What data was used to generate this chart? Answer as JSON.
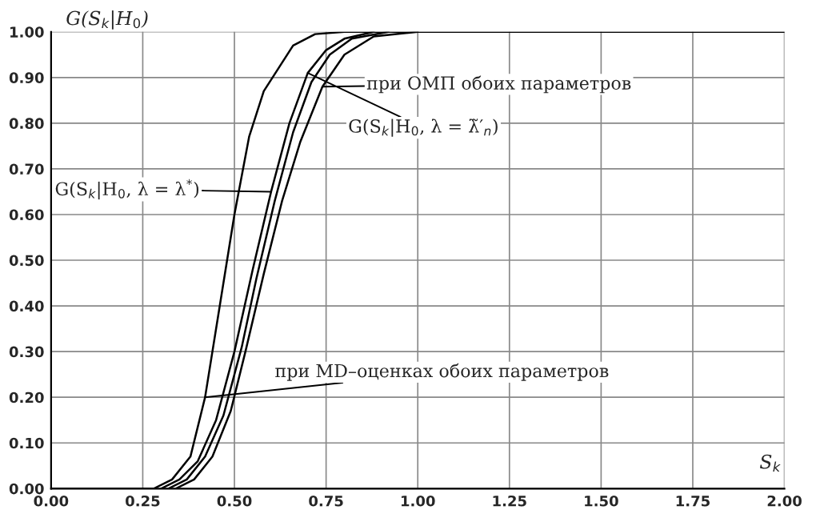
{
  "chart_data": {
    "type": "line",
    "ylabel": "G(S$_{k}$|H$_{0}$)",
    "xlabel": "S$_{k}$",
    "series": [
      {
        "color": "#000000",
        "x": [
          0,
          0.28,
          0.33,
          0.38,
          0.42,
          0.46,
          0.5,
          0.54,
          0.58,
          0.62,
          0.66,
          0.72,
          0.8,
          2.0
        ],
        "values": [
          0,
          0,
          0.02,
          0.07,
          0.2,
          0.4,
          0.6,
          0.77,
          0.87,
          0.92,
          0.97,
          0.995,
          1.0,
          1.0
        ]
      },
      {
        "color": "#000000",
        "x": [
          0.3,
          0.35,
          0.4,
          0.45,
          0.5,
          0.55,
          0.6,
          0.65,
          0.7,
          0.75,
          0.8,
          0.88
        ],
        "values": [
          0,
          0.02,
          0.06,
          0.15,
          0.3,
          0.48,
          0.65,
          0.8,
          0.91,
          0.96,
          0.985,
          1.0
        ]
      },
      {
        "color": "#000000",
        "x": [
          0.32,
          0.37,
          0.42,
          0.47,
          0.52,
          0.56,
          0.61,
          0.66,
          0.71,
          0.76,
          0.82,
          0.92
        ],
        "values": [
          0,
          0.02,
          0.07,
          0.16,
          0.31,
          0.46,
          0.63,
          0.78,
          0.89,
          0.95,
          0.985,
          1.0
        ]
      },
      {
        "color": "#000000",
        "x": [
          0.34,
          0.39,
          0.44,
          0.49,
          0.53,
          0.58,
          0.63,
          0.68,
          0.74,
          0.8,
          0.88,
          1.0
        ],
        "values": [
          0,
          0.02,
          0.07,
          0.17,
          0.3,
          0.47,
          0.63,
          0.76,
          0.88,
          0.95,
          0.99,
          1.0
        ]
      }
    ],
    "annotations": [
      {
        "text": "при ОМП обоих параметров",
        "x": 0.74,
        "y": 0.88
      },
      "G(S$_{k}$|H$_{0}$, λ = λ̃′$_{n}$)",
      "G(S$_{k}$|H$_{0}$, λ = λ$^{*}$)",
      {
        "text": "при MD–оценках обоих параметров",
        "x": 0.42,
        "y": 0.2
      }
    ],
    "xlim": [
      0,
      2.0
    ],
    "ylim": [
      0,
      1.0
    ],
    "xticks": [
      {
        "value": 0,
        "label": "0.00"
      },
      {
        "value": 0.25,
        "label": "0.25"
      },
      {
        "value": 0.5,
        "label": "0.50"
      },
      {
        "value": 0.75,
        "label": "0.75"
      },
      {
        "value": 1.0,
        "label": "1.00"
      },
      {
        "value": 1.25,
        "label": "1.25"
      },
      {
        "value": 1.5,
        "label": "1.50"
      },
      {
        "value": 1.75,
        "label": "1.75"
      },
      {
        "value": 2.0,
        "label": "2.00"
      }
    ],
    "yticks": [
      {
        "value": 0,
        "label": "0.00"
      },
      {
        "value": 0.1,
        "label": "0.10"
      },
      {
        "value": 0.2,
        "label": "0.20"
      },
      {
        "value": 0.3,
        "label": "0.30"
      },
      {
        "value": 0.4,
        "label": "0.40"
      },
      {
        "value": 0.5,
        "label": "0.50"
      },
      {
        "value": 0.6,
        "label": "0.60"
      },
      {
        "value": 0.7,
        "label": "0.70"
      },
      {
        "value": 0.8,
        "label": "0.80"
      },
      {
        "value": 0.9,
        "label": "0.90"
      },
      {
        "value": 1.0,
        "label": "1.00"
      }
    ],
    "grid": true,
    "marker": "none",
    "line_style": "solid"
  }
}
